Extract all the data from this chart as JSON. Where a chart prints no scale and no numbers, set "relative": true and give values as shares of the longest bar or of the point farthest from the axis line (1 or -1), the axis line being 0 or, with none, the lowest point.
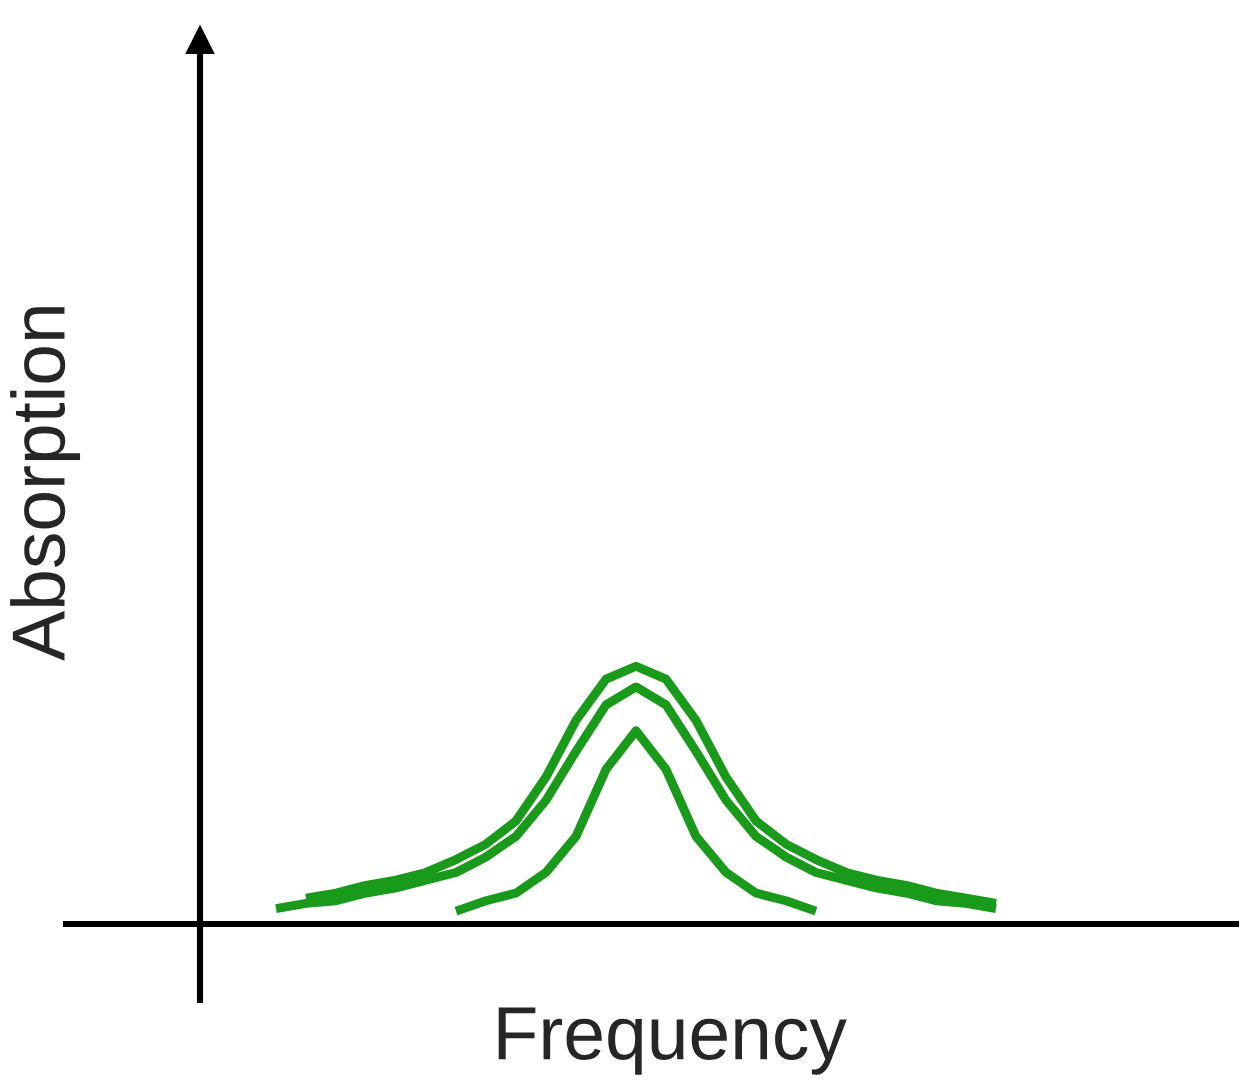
{
  "chart_data": {
    "type": "line",
    "relative": true,
    "xlabel": "Frequency",
    "ylabel": "Absorption",
    "grid": false,
    "legend": false,
    "marker": "none",
    "line_style": "solid",
    "categories": [
      null,
      null,
      null,
      null,
      null,
      null,
      null,
      null,
      null,
      null,
      null,
      null,
      null,
      null,
      null,
      null,
      null,
      null,
      null,
      null,
      null,
      null,
      null,
      null,
      null,
      null,
      null,
      null,
      null,
      null,
      null,
      null,
      null,
      null,
      null,
      null,
      null,
      null,
      null,
      null
    ],
    "series": [
      {
        "color": "#1a9a1a",
        "values": [
          null,
          null,
          null,
          null,
          null,
          null,
          null,
          null,
          0.1,
          0.12,
          0.15,
          0.17,
          0.2,
          0.25,
          0.31,
          0.4,
          0.57,
          0.79,
          0.95,
          1,
          0.95,
          0.79,
          0.57,
          0.4,
          0.31,
          0.25,
          0.2,
          0.17,
          0.15,
          0.12,
          0.1,
          0.08,
          null,
          null,
          null,
          null,
          null,
          null,
          null,
          null
        ]
      },
      {
        "color": "#1a9a1a",
        "values": [
          null,
          null,
          null,
          null,
          null,
          null,
          null,
          0.06,
          0.08,
          0.09,
          0.12,
          0.14,
          0.17,
          0.2,
          0.26,
          0.34,
          0.48,
          0.67,
          0.85,
          0.92,
          0.85,
          0.67,
          0.48,
          0.34,
          0.26,
          0.2,
          0.17,
          0.14,
          0.12,
          0.09,
          0.08,
          0.06,
          null,
          null,
          null,
          null,
          null,
          null,
          null,
          null
        ]
      },
      {
        "color": "#1a9a1a",
        "values": [
          null,
          null,
          null,
          null,
          null,
          null,
          null,
          null,
          null,
          null,
          null,
          null,
          null,
          0.05,
          0.09,
          0.12,
          0.2,
          0.34,
          0.6,
          0.75,
          0.6,
          0.34,
          0.2,
          0.12,
          0.09,
          0.05,
          null,
          null,
          null,
          null,
          null,
          null,
          null,
          null,
          null,
          null,
          null,
          null,
          null,
          null
        ]
      }
    ]
  }
}
